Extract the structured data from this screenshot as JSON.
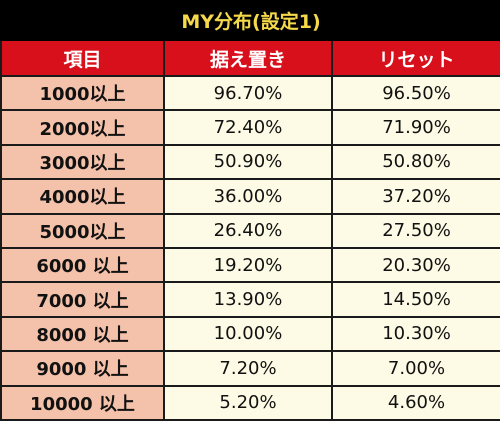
{
  "table": {
    "title": "MY分布(設定1)",
    "headers": [
      "項目",
      "据え置き",
      "リセット"
    ],
    "rows": [
      {
        "label": "1000以上",
        "sueoki": "96.70%",
        "reset": "96.50%"
      },
      {
        "label": "2000以上",
        "sueoki": "72.40%",
        "reset": "71.90%"
      },
      {
        "label": "3000以上",
        "sueoki": "50.90%",
        "reset": "50.80%"
      },
      {
        "label": "4000以上",
        "sueoki": "36.00%",
        "reset": "37.20%"
      },
      {
        "label": "5000以上",
        "sueoki": "26.40%",
        "reset": "27.50%"
      },
      {
        "label": "6000 以上",
        "sueoki": "19.20%",
        "reset": "20.30%"
      },
      {
        "label": "7000 以上",
        "sueoki": "13.90%",
        "reset": "14.50%"
      },
      {
        "label": "8000 以上",
        "sueoki": "10.00%",
        "reset": "10.30%"
      },
      {
        "label": "9000 以上",
        "sueoki": "7.20%",
        "reset": "7.00%"
      },
      {
        "label": "10000 以上",
        "sueoki": "5.20%",
        "reset": "4.60%"
      }
    ]
  },
  "colors": {
    "title_bg": "#000000",
    "title_text": "#f5d94a",
    "header_bg": "#d8101c",
    "label_bg": "#f4c1aa",
    "value_bg": "#fdfbe5"
  }
}
